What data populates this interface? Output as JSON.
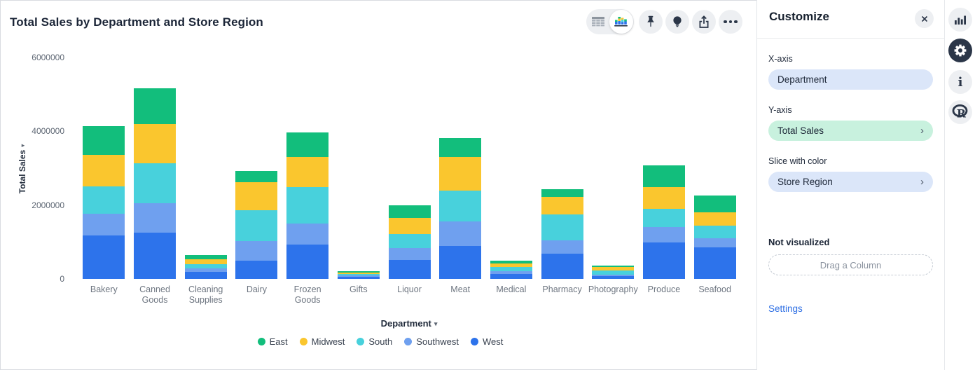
{
  "chart_title": "Total Sales by Department and Store Region",
  "toolbar": {
    "view_toggle": [
      "table-view",
      "chart-view"
    ],
    "buttons": [
      "pin",
      "insights",
      "export",
      "more"
    ]
  },
  "panel": {
    "title": "Customize",
    "fields": [
      {
        "label": "X-axis",
        "value": "Department",
        "color": "blue",
        "chevron": false
      },
      {
        "label": "Y-axis",
        "value": "Total Sales",
        "color": "green",
        "chevron": true
      },
      {
        "label": "Slice with color",
        "value": "Store Region",
        "color": "blue",
        "chevron": true
      }
    ],
    "not_visualized_label": "Not visualized",
    "drag_placeholder": "Drag a Column",
    "settings_link": "Settings"
  },
  "rail": {
    "icons": [
      "bar-chart",
      "gear",
      "info",
      "r-logo"
    ]
  },
  "chart_data": {
    "type": "bar",
    "stacked": true,
    "title": "Total Sales by Department and Store Region",
    "xlabel": "Department",
    "ylabel": "Total Sales",
    "ylim": [
      0,
      6000000
    ],
    "yticks": [
      0,
      2000000,
      4000000,
      6000000
    ],
    "grid": false,
    "legend_position": "bottom",
    "categories": [
      "Bakery",
      "Canned Goods",
      "Cleaning Supplies",
      "Dairy",
      "Frozen Goods",
      "Gifts",
      "Liquor",
      "Meat",
      "Medical",
      "Pharmacy",
      "Photography",
      "Produce",
      "Seafood"
    ],
    "series": [
      {
        "name": "West",
        "color": "#2d73eb",
        "values": [
          1180000,
          1260000,
          190000,
          490000,
          930000,
          60000,
          520000,
          890000,
          130000,
          690000,
          80000,
          980000,
          850000
        ]
      },
      {
        "name": "Southwest",
        "color": "#6fa0ef",
        "values": [
          580000,
          790000,
          100000,
          530000,
          560000,
          30000,
          320000,
          660000,
          75000,
          360000,
          40000,
          420000,
          250000
        ]
      },
      {
        "name": "South",
        "color": "#48d1dc",
        "values": [
          750000,
          1080000,
          110000,
          830000,
          990000,
          40000,
          370000,
          840000,
          110000,
          690000,
          100000,
          490000,
          340000
        ]
      },
      {
        "name": "Midwest",
        "color": "#fac62e",
        "values": [
          850000,
          1060000,
          140000,
          770000,
          810000,
          40000,
          430000,
          910000,
          110000,
          480000,
          100000,
          590000,
          370000
        ]
      },
      {
        "name": "East",
        "color": "#12be7c",
        "values": [
          770000,
          970000,
          110000,
          290000,
          680000,
          40000,
          360000,
          510000,
          60000,
          200000,
          35000,
          590000,
          450000
        ]
      }
    ],
    "legend_order": [
      "East",
      "Midwest",
      "South",
      "Southwest",
      "West"
    ]
  }
}
